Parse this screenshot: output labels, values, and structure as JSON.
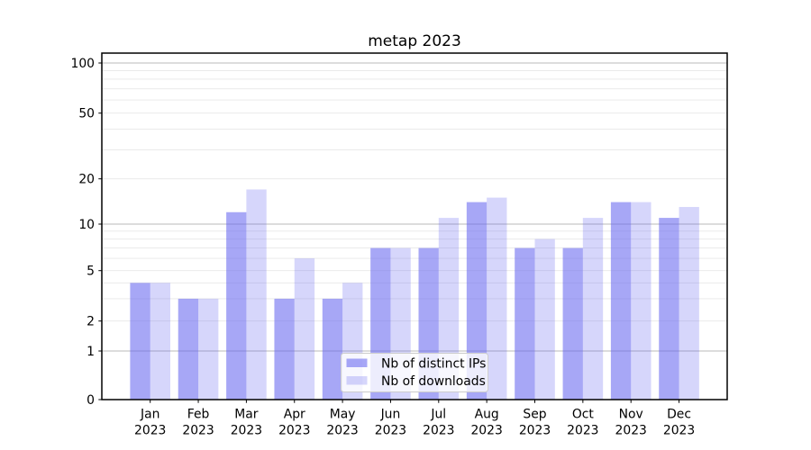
{
  "chart_data": {
    "type": "bar",
    "title": "metap 2023",
    "categories": [
      "Jan",
      "Feb",
      "Mar",
      "Apr",
      "May",
      "Jun",
      "Jul",
      "Aug",
      "Sep",
      "Oct",
      "Nov",
      "Dec"
    ],
    "x_tick_year": "2023",
    "series": [
      {
        "name": "Nb of distinct IPs",
        "base_color": "#6666f0",
        "alpha": 0.575,
        "rendered_hex": "#a7a7f4",
        "values": [
          4,
          3,
          12,
          3,
          3,
          7,
          7,
          14,
          7,
          7,
          14,
          11
        ]
      },
      {
        "name": "Nb of downloads",
        "base_color": "#6666f0",
        "alpha": 0.27,
        "rendered_hex": "#d6d6f7",
        "values": [
          4,
          3,
          17,
          6,
          4,
          7,
          11,
          15,
          8,
          11,
          14,
          13
        ]
      }
    ],
    "xlabel": "",
    "ylabel": "",
    "yscale": "symlog",
    "ylim": [
      0,
      115
    ],
    "y_ticks": [
      0,
      1,
      2,
      5,
      10,
      20,
      50,
      100
    ],
    "y_major_gridlines": [
      1,
      10,
      100
    ],
    "y_minor_gridlines": [
      3,
      4,
      6,
      7,
      8,
      9,
      30,
      40,
      60,
      70,
      80,
      90
    ],
    "grid": true,
    "legend_position": "lower center"
  },
  "colors": {
    "major_grid": "#b8b8b8",
    "minor_grid": "#e7e7e7",
    "axis": "#000000",
    "legend_border": "#cccccc",
    "legend_bg_alpha": 0.8
  }
}
